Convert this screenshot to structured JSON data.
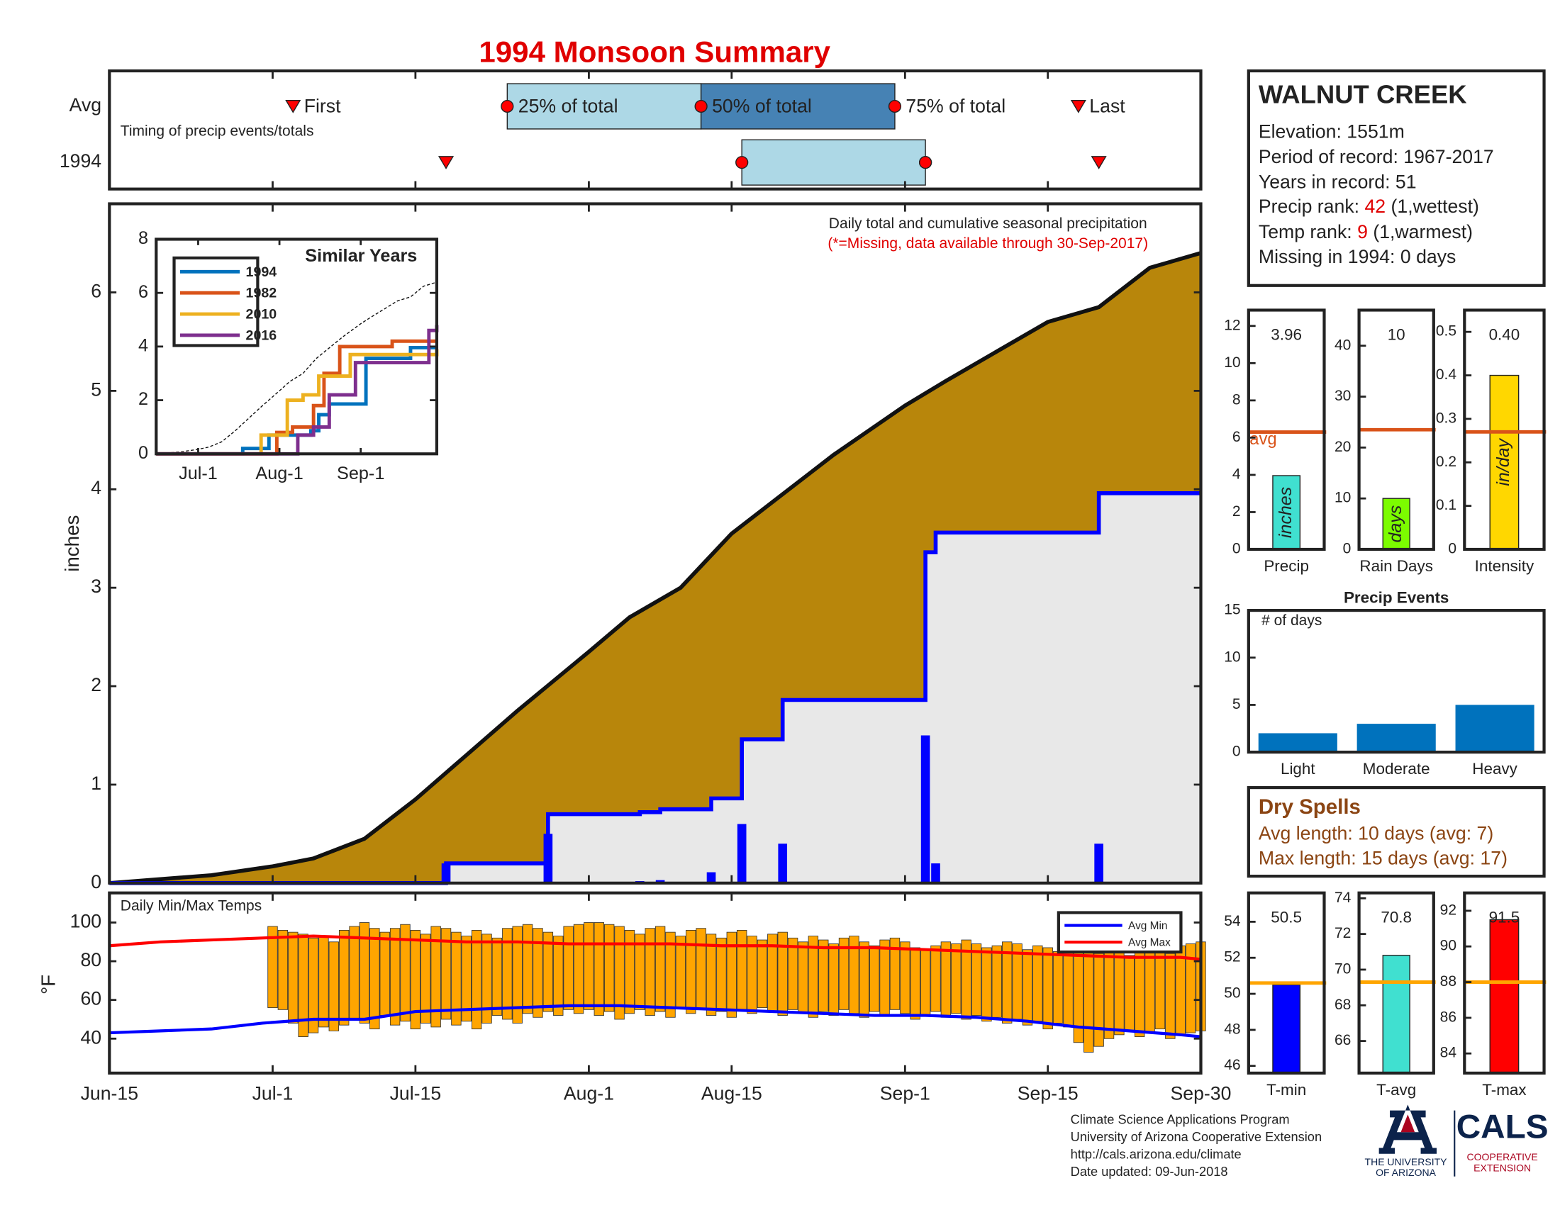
{
  "title": "1994 Monsoon Summary",
  "chart_data": [
    {
      "type": "timing",
      "xlim": [
        0,
        107
      ],
      "note": "Timing of precip events/totals",
      "labels": {
        "first": "First",
        "p25": "25% of total",
        "p50": "50% of total",
        "p75": "75% of total",
        "last": "Last"
      },
      "colors": {
        "lower": "#add8e6",
        "upper": "#4682b4",
        "marker": "#ff0000"
      },
      "series": [
        {
          "name": "Avg",
          "first": 18,
          "p25": 39,
          "p50": 58,
          "p75": 77,
          "last": 95
        },
        {
          "name": "1994",
          "first": 33,
          "p25": 62,
          "p50": 80,
          "p75": 80,
          "last": 97
        }
      ]
    },
    {
      "type": "precip",
      "title": "Daily total and cumulative seasonal precipitation",
      "note": "(*=Missing, data available through 30-Sep-2017)",
      "ylabel": "inches",
      "xlim": [
        0,
        107
      ],
      "ylim": [
        0,
        6.9
      ],
      "yticks": [
        0,
        1,
        2,
        3,
        4,
        5,
        6
      ],
      "below_color": "#e8e8e8",
      "series": [
        {
          "color": "#b8860b",
          "x": [
            0,
            10,
            16,
            20,
            25,
            30,
            35,
            40,
            47,
            51,
            56,
            61,
            66,
            71,
            78,
            82,
            87,
            92,
            97,
            102,
            107
          ],
          "values": [
            0,
            0.08,
            0.17,
            0.25,
            0.45,
            0.85,
            1.3,
            1.75,
            2.35,
            2.7,
            3.0,
            3.55,
            3.95,
            4.35,
            4.85,
            5.1,
            5.4,
            5.7,
            5.85,
            6.25,
            6.4
          ]
        },
        {
          "color": "#0000ff",
          "x": [
            33,
            43,
            52,
            54,
            59,
            62,
            66,
            80,
            81,
            97
          ],
          "values": [
            0.2,
            0.5,
            0.02,
            0.03,
            0.11,
            0.6,
            0.4,
            1.5,
            0.2,
            0.4
          ]
        }
      ]
    },
    {
      "type": "line",
      "title": "Similar Years",
      "xlim": [
        0,
        107
      ],
      "ylim": [
        0,
        8
      ],
      "yticks": [
        0,
        2,
        4,
        6,
        8
      ],
      "xticks": [
        {
          "value": 16,
          "label": "Jul-1"
        },
        {
          "value": 47,
          "label": "Aug-1"
        },
        {
          "value": 78,
          "label": "Sep-1"
        }
      ],
      "series": [
        {
          "name": "1994",
          "color": "#0072bd",
          "x": [
            0,
            33,
            43,
            59,
            62,
            66,
            80,
            97,
            107
          ],
          "values": [
            0,
            0.2,
            0.7,
            0.86,
            1.46,
            1.86,
            3.56,
            3.96,
            3.96
          ]
        },
        {
          "name": "1982",
          "color": "#d95319",
          "x": [
            0,
            40,
            46,
            52,
            60,
            64,
            70,
            90,
            107
          ],
          "values": [
            0,
            0,
            0.8,
            1.0,
            1.8,
            3.0,
            4.0,
            4.2,
            4.2
          ]
        },
        {
          "name": "2010",
          "color": "#edb120",
          "x": [
            0,
            36,
            40,
            50,
            56,
            62,
            74,
            107
          ],
          "values": [
            0,
            0,
            0.7,
            2.0,
            2.2,
            2.9,
            3.7,
            3.9
          ]
        },
        {
          "name": "2016",
          "color": "#7e2f8e",
          "x": [
            0,
            44,
            54,
            60,
            66,
            76,
            104,
            107
          ],
          "values": [
            0,
            0,
            0.7,
            1.0,
            2.2,
            3.4,
            4.6,
            4.8
          ]
        }
      ]
    },
    {
      "type": "range_bar",
      "title": "Daily Min/Max Temps",
      "ylabel": "°F",
      "xlim": [
        0,
        107
      ],
      "ylim": [
        22.2,
        115.3
      ],
      "yticks": [
        40,
        60,
        80,
        100
      ],
      "xticks": [
        {
          "value": 0,
          "label": "Jun-15"
        },
        {
          "value": 16,
          "label": "Jul-1"
        },
        {
          "value": 30,
          "label": "Jul-15"
        },
        {
          "value": 47,
          "label": "Aug-1"
        },
        {
          "value": 61,
          "label": "Aug-15"
        },
        {
          "value": 78,
          "label": "Sep-1"
        },
        {
          "value": 92,
          "label": "Sep-15"
        },
        {
          "value": 107,
          "label": "Sep-30"
        }
      ],
      "bars": {
        "color": "#ffa500",
        "x": [
          16,
          17,
          18,
          19,
          20,
          21,
          22,
          23,
          24,
          25,
          26,
          27,
          28,
          29,
          30,
          31,
          32,
          33,
          34,
          35,
          36,
          37,
          38,
          39,
          40,
          41,
          42,
          43,
          44,
          45,
          46,
          47,
          48,
          49,
          50,
          51,
          52,
          53,
          54,
          55,
          56,
          57,
          58,
          59,
          60,
          61,
          62,
          63,
          64,
          65,
          66,
          67,
          68,
          69,
          70,
          71,
          72,
          73,
          74,
          75,
          76,
          77,
          78,
          79,
          80,
          81,
          82,
          83,
          84,
          85,
          86,
          87,
          88,
          89,
          90,
          91,
          92,
          93,
          94,
          95,
          96,
          97,
          98,
          99,
          100,
          101,
          102,
          103,
          104,
          105,
          106,
          107
        ],
        "max": [
          98,
          96,
          95,
          94,
          92,
          93,
          90,
          96,
          98,
          100,
          97,
          95,
          97,
          99,
          96,
          94,
          98,
          97,
          95,
          93,
          96,
          94,
          92,
          97,
          98,
          99,
          97,
          95,
          93,
          98,
          99,
          100,
          100,
          99,
          98,
          96,
          94,
          97,
          98,
          95,
          93,
          96,
          97,
          94,
          92,
          95,
          96,
          93,
          91,
          94,
          95,
          92,
          90,
          93,
          91,
          89,
          92,
          93,
          90,
          88,
          91,
          92,
          90,
          87,
          86,
          88,
          90,
          89,
          91,
          89,
          87,
          88,
          90,
          89,
          86,
          88,
          87,
          85,
          86,
          88,
          87,
          84,
          86,
          85,
          83,
          85,
          87,
          86,
          84,
          88,
          89,
          90
        ],
        "min": [
          56,
          55,
          48,
          41,
          43,
          46,
          44,
          47,
          50,
          48,
          45,
          52,
          47,
          49,
          45,
          48,
          46,
          50,
          47,
          49,
          45,
          48,
          52,
          50,
          48,
          53,
          51,
          54,
          52,
          55,
          53,
          55,
          52,
          54,
          50,
          53,
          55,
          52,
          54,
          51,
          56,
          53,
          55,
          52,
          54,
          51,
          55,
          53,
          56,
          54,
          52,
          55,
          53,
          51,
          54,
          52,
          55,
          53,
          51,
          54,
          52,
          55,
          53,
          50,
          52,
          54,
          51,
          53,
          50,
          52,
          49,
          51,
          48,
          50,
          47,
          49,
          45,
          48,
          46,
          38,
          33,
          36,
          40,
          42,
          44,
          41,
          43,
          45,
          40,
          42,
          43,
          44
        ]
      },
      "series": [
        {
          "name": "Avg Min",
          "color": "#0000ff",
          "x": [
            0,
            5,
            10,
            15,
            20,
            25,
            30,
            35,
            40,
            45,
            50,
            55,
            60,
            65,
            70,
            75,
            80,
            85,
            90,
            95,
            100,
            105,
            107
          ],
          "values": [
            43,
            44,
            45,
            48,
            50,
            50,
            54,
            55,
            56,
            57,
            57,
            56,
            55,
            54,
            53,
            52,
            52,
            51,
            49,
            46,
            44,
            42,
            41
          ]
        },
        {
          "name": "Avg Max",
          "color": "#ff0000",
          "x": [
            0,
            5,
            10,
            15,
            20,
            25,
            30,
            35,
            40,
            45,
            50,
            55,
            60,
            65,
            70,
            75,
            80,
            85,
            90,
            95,
            100,
            105,
            107
          ],
          "values": [
            88,
            90,
            91,
            92,
            93,
            92,
            91,
            90,
            90,
            89,
            89,
            89,
            88,
            88,
            87,
            87,
            86,
            85,
            84,
            83,
            82,
            82,
            81
          ]
        }
      ]
    },
    {
      "type": "bar_avg",
      "categories": [
        "Precip"
      ],
      "values": [
        3.96
      ],
      "avg": 6.3,
      "avg_label": "avg",
      "unit": "inches",
      "color": "#40e0d0",
      "avg_color": "#d95319",
      "ylim": [
        0,
        12.85
      ],
      "yticks": [
        0,
        2,
        4,
        6,
        8,
        10,
        12
      ]
    },
    {
      "type": "bar_avg",
      "categories": [
        "Rain Days"
      ],
      "values": [
        10
      ],
      "avg": 23.5,
      "unit": "days",
      "color": "#7cfc00",
      "avg_color": "#d95319",
      "ylim": [
        0,
        47
      ],
      "yticks": [
        0,
        10,
        20,
        30,
        40
      ]
    },
    {
      "type": "bar_avg",
      "categories": [
        "Intensity"
      ],
      "values": [
        0.4
      ],
      "value_labels": [
        "0.40"
      ],
      "avg": 0.27,
      "unit": "in/day",
      "color": "#ffd700",
      "avg_color": "#d95319",
      "ylim": [
        0,
        0.55
      ],
      "yticks": [
        0,
        0.1,
        0.2,
        0.3,
        0.4,
        0.5
      ]
    },
    {
      "type": "bar",
      "title": "Precip Events",
      "ylabel": "# of days",
      "categories": [
        "Light",
        "Moderate",
        "Heavy"
      ],
      "values": [
        2,
        3,
        5
      ],
      "color": "#0072bd",
      "ylim": [
        0,
        15
      ],
      "yticks": [
        0,
        5,
        10,
        15
      ]
    },
    {
      "type": "bar_avg",
      "categories": [
        "T-min"
      ],
      "values": [
        50.5
      ],
      "avg": 50.6,
      "color": "#0000ff",
      "avg_color": "#ffa500",
      "ylim": [
        45.6,
        55.6
      ],
      "yticks": [
        46,
        48,
        50,
        52,
        54
      ]
    },
    {
      "type": "bar_avg",
      "categories": [
        "T-avg"
      ],
      "values": [
        70.8
      ],
      "avg": 69.3,
      "color": "#40e0d0",
      "avg_color": "#ffa500",
      "ylim": [
        64.2,
        74.3
      ],
      "yticks": [
        66,
        68,
        70,
        72,
        74
      ]
    },
    {
      "type": "bar_avg",
      "categories": [
        "T-max"
      ],
      "values": [
        91.5
      ],
      "avg": 88,
      "color": "#ff0000",
      "avg_color": "#ffa500",
      "ylim": [
        82.9,
        93
      ],
      "yticks": [
        84,
        86,
        88,
        90,
        92
      ]
    }
  ],
  "info": {
    "station": "WALNUT CREEK",
    "lines": [
      "Elevation: 1551m",
      "Period of record: 1967-2017",
      "Years in record: 51"
    ],
    "precip_rank_label": "Precip rank: ",
    "precip_rank": 42,
    "precip_rank_note": " (1,wettest)",
    "temp_rank_label": "Temp rank: ",
    "temp_rank": 9,
    "temp_rank_note": " (1,warmest)",
    "missing": "Missing in 1994: 0 days"
  },
  "dry_spells": {
    "title": "Dry Spells",
    "lines": [
      "Avg length: 10 days (avg: 7)",
      "Max length: 15 days (avg: 17)"
    ]
  },
  "footer": [
    "Climate Science Applications Program",
    "University of Arizona Cooperative Extension",
    "http://cals.arizona.edu/climate",
    " Date updated: 09-Jun-2018"
  ],
  "logo": {
    "university": [
      "THE UNIVERSITY",
      "OF ARIZONA"
    ],
    "cals": "CALS",
    "extension": [
      "COOPERATIVE",
      "EXTENSION"
    ]
  }
}
